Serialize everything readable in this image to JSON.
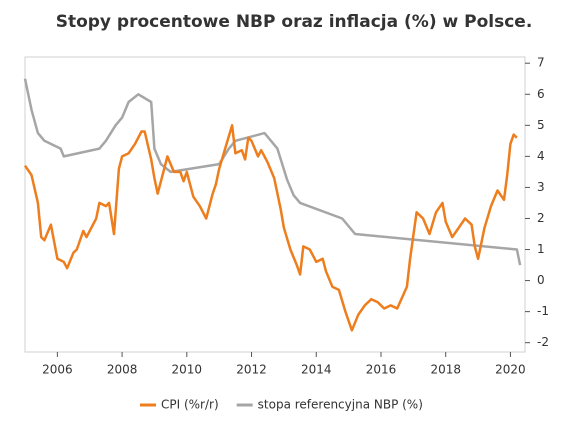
{
  "chart_data": {
    "type": "line",
    "title": "Stopy procentowe NBP oraz inflacja (%) w Polsce.",
    "xlim": [
      2005,
      2020.45
    ],
    "xticks": [
      2006,
      2008,
      2010,
      2012,
      2014,
      2016,
      2018,
      2020
    ],
    "ylim": [
      -2.3,
      7.2
    ],
    "yticks": [
      -2,
      -1,
      0,
      1,
      2,
      3,
      4,
      5,
      6,
      7
    ],
    "legend": "bottom",
    "series": [
      {
        "name": "CPI (%r/r)",
        "color": "#ee7d1d",
        "x": [
          2005.0,
          2005.2,
          2005.4,
          2005.5,
          2005.6,
          2005.8,
          2006.0,
          2006.2,
          2006.3,
          2006.5,
          2006.6,
          2006.8,
          2006.9,
          2007.0,
          2007.2,
          2007.3,
          2007.5,
          2007.6,
          2007.75,
          2007.9,
          2008.0,
          2008.2,
          2008.4,
          2008.6,
          2008.7,
          2008.9,
          2009.0,
          2009.1,
          2009.3,
          2009.4,
          2009.6,
          2009.8,
          2009.9,
          2010.0,
          2010.2,
          2010.4,
          2010.6,
          2010.8,
          2010.9,
          2011.0,
          2011.2,
          2011.4,
          2011.5,
          2011.7,
          2011.8,
          2011.9,
          2012.0,
          2012.2,
          2012.3,
          2012.5,
          2012.7,
          2012.9,
          2013.0,
          2013.2,
          2013.4,
          2013.5,
          2013.6,
          2013.8,
          2014.0,
          2014.2,
          2014.3,
          2014.5,
          2014.7,
          2014.9,
          2015.1,
          2015.3,
          2015.5,
          2015.7,
          2015.9,
          2016.1,
          2016.3,
          2016.5,
          2016.8,
          2016.9,
          2017.1,
          2017.3,
          2017.5,
          2017.7,
          2017.9,
          2018.0,
          2018.2,
          2018.4,
          2018.6,
          2018.8,
          2018.9,
          2019.0,
          2019.2,
          2019.4,
          2019.6,
          2019.8,
          2019.9,
          2020.0,
          2020.1,
          2020.2
        ],
        "values": [
          3.7,
          3.4,
          2.5,
          1.4,
          1.3,
          1.8,
          0.7,
          0.6,
          0.4,
          0.9,
          1.0,
          1.6,
          1.4,
          1.6,
          2.0,
          2.5,
          2.4,
          2.5,
          1.5,
          3.6,
          4.0,
          4.1,
          4.4,
          4.8,
          4.8,
          3.9,
          3.3,
          2.8,
          3.6,
          4.0,
          3.5,
          3.5,
          3.2,
          3.5,
          2.7,
          2.4,
          2.0,
          2.8,
          3.1,
          3.6,
          4.3,
          5.0,
          4.1,
          4.2,
          3.9,
          4.6,
          4.5,
          4.0,
          4.2,
          3.8,
          3.3,
          2.3,
          1.7,
          1.0,
          0.5,
          0.2,
          1.1,
          1.0,
          0.6,
          0.7,
          0.3,
          -0.2,
          -0.3,
          -1.0,
          -1.6,
          -1.1,
          -0.8,
          -0.6,
          -0.7,
          -0.9,
          -0.8,
          -0.9,
          -0.2,
          0.7,
          2.2,
          2.0,
          1.5,
          2.2,
          2.5,
          1.9,
          1.4,
          1.7,
          2.0,
          1.8,
          1.1,
          0.7,
          1.7,
          2.4,
          2.9,
          2.6,
          3.4,
          4.4,
          4.7,
          4.6
        ]
      },
      {
        "name": "stopa referencyjna NBP (%)",
        "color": "#a6a6a6",
        "x": [
          2005.0,
          2005.2,
          2005.4,
          2005.6,
          2006.1,
          2006.2,
          2007.3,
          2007.5,
          2007.8,
          2008.0,
          2008.2,
          2008.5,
          2008.9,
          2009.0,
          2009.2,
          2009.5,
          2011.0,
          2011.3,
          2011.5,
          2012.4,
          2012.8,
          2013.1,
          2013.3,
          2013.5,
          2014.8,
          2015.2,
          2020.2,
          2020.3
        ],
        "values": [
          6.5,
          5.5,
          4.75,
          4.5,
          4.25,
          4.0,
          4.25,
          4.5,
          5.0,
          5.25,
          5.75,
          6.0,
          5.75,
          4.25,
          3.75,
          3.5,
          3.75,
          4.25,
          4.5,
          4.75,
          4.25,
          3.25,
          2.75,
          2.5,
          2.0,
          1.5,
          1.0,
          0.5
        ]
      }
    ]
  }
}
